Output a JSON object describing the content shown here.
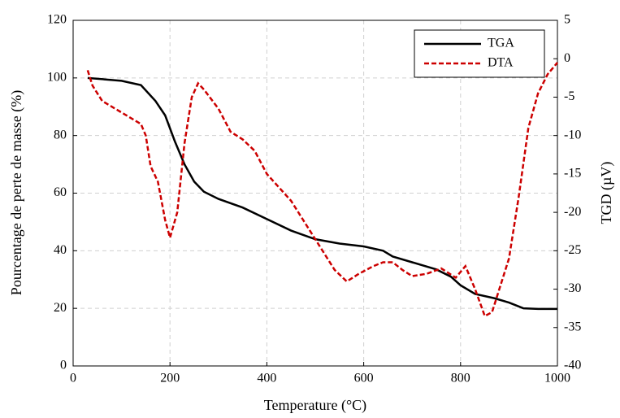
{
  "chart_data": {
    "type": "line",
    "xlabel": "Temperature (°C)",
    "ylabel": "Pourcentage de perte de masse (%)",
    "y2label": "TGD (µV)",
    "xlim": [
      0,
      1000
    ],
    "xticks": [
      0,
      200,
      400,
      600,
      800,
      1000
    ],
    "ylim": [
      0,
      120
    ],
    "yticks": [
      0,
      20,
      40,
      60,
      80,
      100,
      120
    ],
    "y2lim": [
      -40,
      5
    ],
    "y2ticks": [
      -40,
      -35,
      -30,
      -25,
      -20,
      -15,
      -10,
      -5,
      0,
      5
    ],
    "grid": true,
    "legend": "upper right",
    "series": [
      {
        "name": "TGA",
        "color": "#000000",
        "linestyle": "solid",
        "axis": "y",
        "x": [
          30,
          100,
          140,
          170,
          190,
          210,
          230,
          250,
          270,
          300,
          350,
          400,
          450,
          500,
          550,
          600,
          640,
          660,
          700,
          750,
          780,
          800,
          830,
          870,
          900,
          930,
          960,
          1000
        ],
        "values": [
          100,
          99,
          97.5,
          92,
          87,
          78,
          70,
          64,
          60.5,
          58,
          55,
          51,
          47,
          44,
          42.5,
          41.5,
          40,
          38,
          36,
          33.5,
          31,
          28,
          25,
          23.5,
          22,
          20,
          19.8,
          19.8
        ]
      },
      {
        "name": "DTA",
        "color": "#cc0000",
        "linestyle": "dashed",
        "axis": "y2",
        "x": [
          30,
          40,
          60,
          100,
          140,
          150,
          160,
          175,
          190,
          200,
          215,
          230,
          245,
          258,
          270,
          300,
          325,
          350,
          375,
          400,
          450,
          500,
          540,
          565,
          590,
          620,
          640,
          660,
          680,
          700,
          730,
          760,
          790,
          810,
          830,
          850,
          865,
          880,
          900,
          920,
          940,
          960,
          980,
          1000
        ],
        "values": [
          -1.5,
          -3.5,
          -5.5,
          -7,
          -8.5,
          -10,
          -14,
          -16,
          -21,
          -23.3,
          -20,
          -11,
          -5,
          -3.2,
          -4,
          -6.5,
          -9.5,
          -10.5,
          -12,
          -15,
          -18.5,
          -23.5,
          -27.5,
          -29,
          -28,
          -27,
          -26.5,
          -26.5,
          -27.5,
          -28.3,
          -28,
          -27.3,
          -28.5,
          -27,
          -30,
          -33.5,
          -33,
          -30,
          -26,
          -18,
          -9,
          -4.5,
          -2,
          -0.5
        ]
      }
    ]
  }
}
